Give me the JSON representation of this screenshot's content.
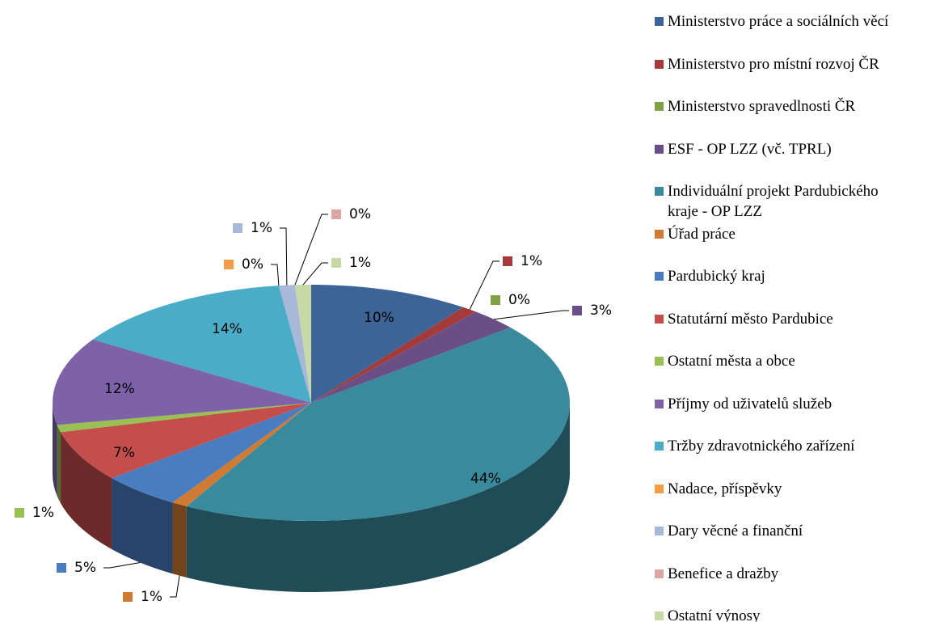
{
  "chart_data": {
    "type": "pie",
    "categories": [
      "Ministerstvo práce a sociálních věcí",
      "Ministerstvo pro místní rozvoj ČR",
      "Ministerstvo spravedlnosti ČR",
      "ESF - OP LZZ (vč. TPRL)",
      "Individuální projekt Pardubického kraje - OP LZZ",
      "Úřad práce",
      "Pardubický kraj",
      "Statutární město Pardubice",
      "Ostatní města a obce",
      "Příjmy od uživatelů služeb",
      "Tržby zdravotnického zařízení",
      "Nadace, příspěvky",
      "Dary věcné a finanční",
      "Benefice a dražby",
      "Ostatní výnosy"
    ],
    "values": [
      10,
      1,
      0,
      3,
      44,
      1,
      5,
      7,
      1,
      12,
      14,
      0,
      1,
      0,
      1
    ],
    "value_labels": [
      "10%",
      "1%",
      "0%",
      "3%",
      "44%",
      "1%",
      "5%",
      "7%",
      "1%",
      "12%",
      "14%",
      "0%",
      "1%",
      "0%",
      "1%"
    ],
    "colors": [
      "#3c6496",
      "#a33b3b",
      "#82a044",
      "#6a4f86",
      "#3a8a9e",
      "#d07b33",
      "#4a7cc0",
      "#c44e4c",
      "#99c052",
      "#7e62a8",
      "#4aacc6",
      "#f59a45",
      "#a7b8d8",
      "#dba6a6",
      "#c6d9a6"
    ],
    "legend": "right"
  }
}
